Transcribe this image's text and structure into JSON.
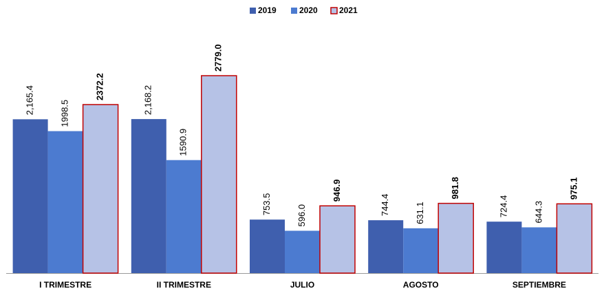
{
  "chart_data": {
    "type": "bar",
    "categories": [
      "I TRIMESTRE",
      "II TRIMESTRE",
      "JULIO",
      "AGOSTO",
      "SEPTIEMBRE"
    ],
    "series": [
      {
        "name": "2019",
        "color": "#3f5fae",
        "values": [
          2165.4,
          2168.2,
          753.5,
          744.4,
          724.4
        ],
        "value_labels": [
          "2,165.4",
          "2,168.2",
          "753.5",
          "744.4",
          "724.4"
        ]
      },
      {
        "name": "2020",
        "color": "#4c7bd0",
        "values": [
          1998.5,
          1590.9,
          596.0,
          631.1,
          644.3
        ],
        "value_labels": [
          "1998.5",
          "1590.9",
          "596.0",
          "631.1",
          "644.3"
        ]
      },
      {
        "name": "2021",
        "color": "#b6c2e6",
        "edgecolor": "#c00000",
        "values": [
          2372.2,
          2779.0,
          946.9,
          981.8,
          975.1
        ],
        "value_labels": [
          "2372.2",
          "2779.0",
          "946.9",
          "981.8",
          "975.1"
        ]
      }
    ]
  }
}
